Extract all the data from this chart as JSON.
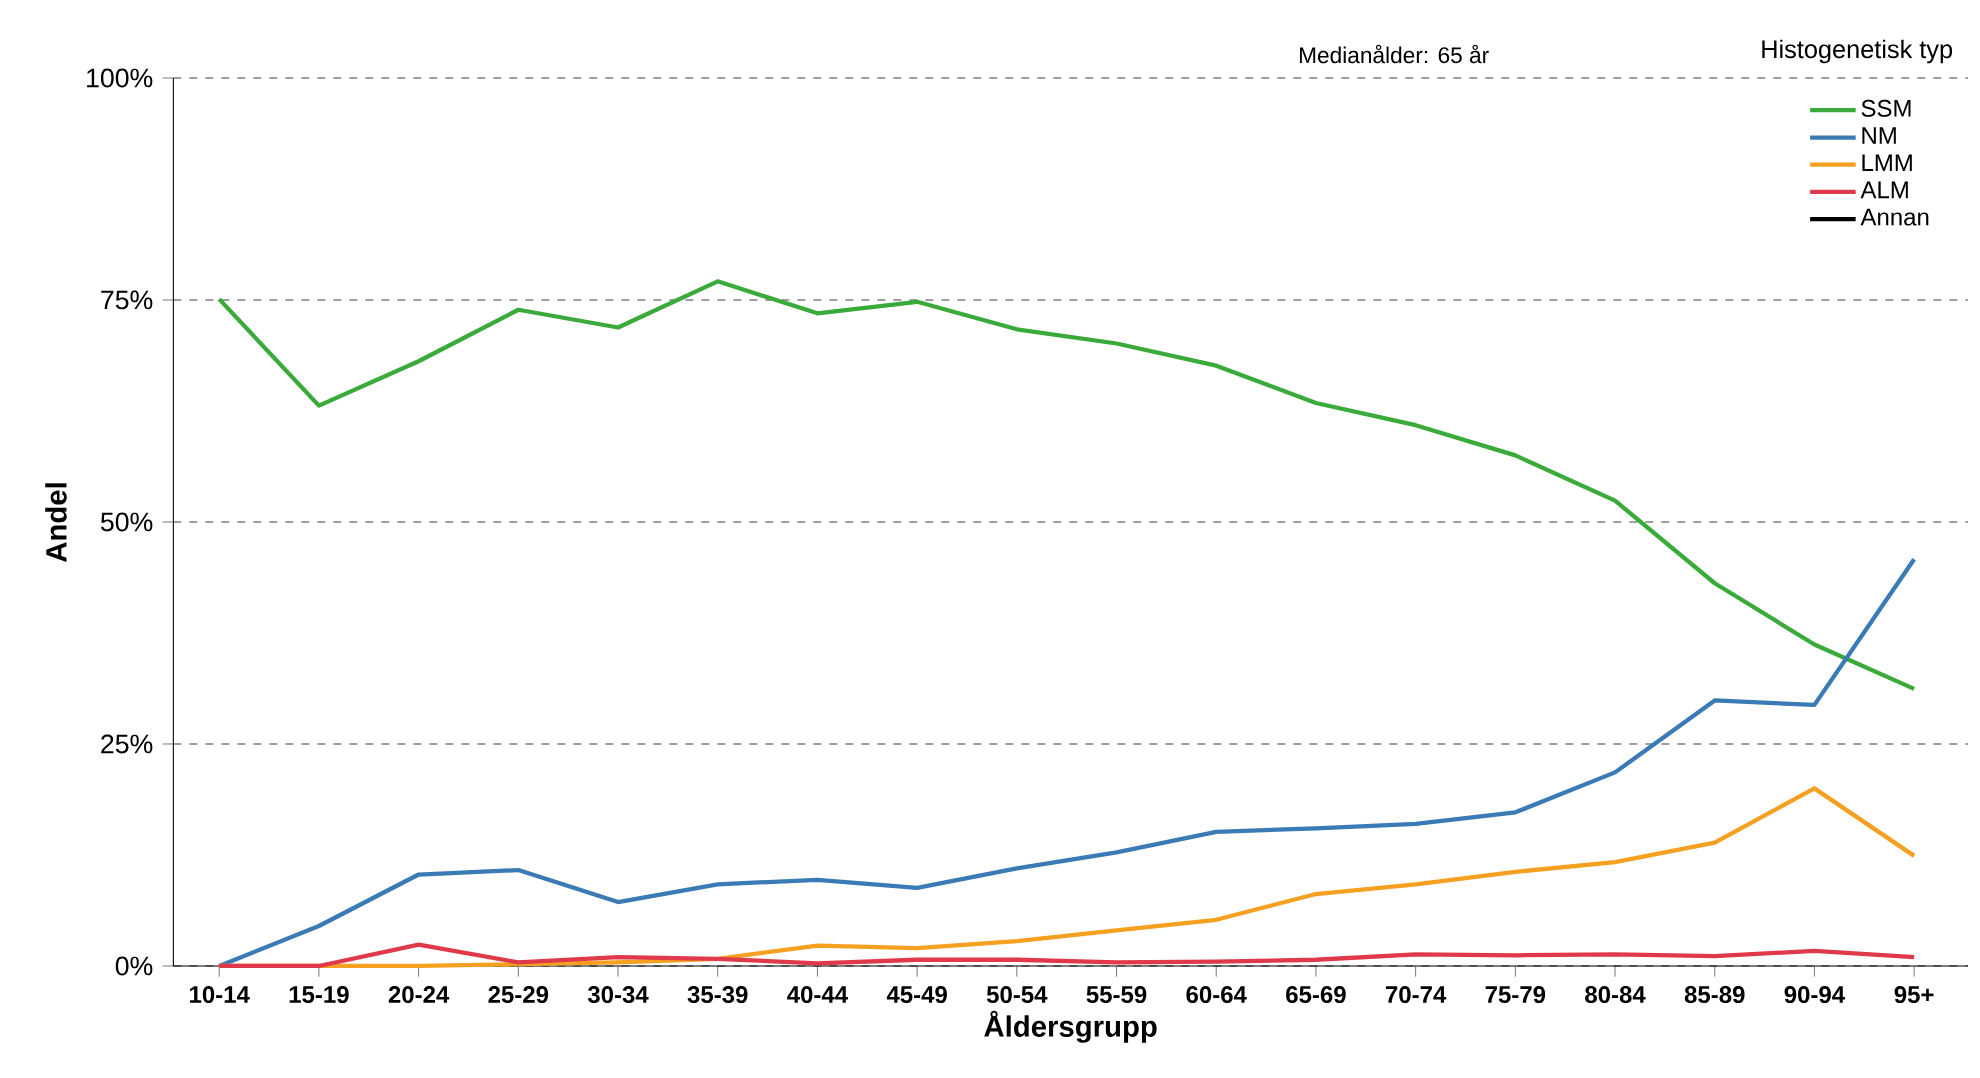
{
  "chart_data": {
    "type": "line",
    "ylabel": "Andel",
    "xlabel": "Åldersgrupp",
    "legend_title": "Histogenetisk typ",
    "annotations": [
      "Medianålder: 65 år"
    ],
    "categories": [
      "10-14",
      "15-19",
      "20-24",
      "25-29",
      "30-34",
      "35-39",
      "40-44",
      "45-49",
      "50-54",
      "55-59",
      "60-64",
      "65-69",
      "70-74",
      "75-79",
      "80-84",
      "85-89",
      "90-94",
      "95+"
    ],
    "ylim": [
      0,
      100
    ],
    "yticks": [
      {
        "value": 0,
        "label": "0%"
      },
      {
        "value": 25,
        "label": "25%"
      },
      {
        "value": 50,
        "label": "50%"
      },
      {
        "value": 75,
        "label": "75%"
      },
      {
        "value": 100,
        "label": "100%"
      }
    ],
    "grid": "y",
    "legend": "top right",
    "marker": "none",
    "line_style": "solid",
    "series": [
      {
        "name": "SSM",
        "color": "#3aaa3a",
        "values": [
          75.1,
          63.1,
          68.1,
          73.9,
          71.9,
          77.1,
          73.5,
          74.8,
          71.7,
          70.1,
          67.6,
          63.4,
          60.9,
          57.5,
          52.4,
          43.1,
          36.2,
          31.2
        ]
      },
      {
        "name": "NM",
        "color": "#3a7ab5",
        "values": [
          0,
          4.5,
          10.3,
          10.8,
          7.2,
          9.2,
          9.7,
          8.8,
          11,
          12.8,
          15.1,
          15.5,
          16,
          17.3,
          21.8,
          29.9,
          29.4,
          45.8
        ]
      },
      {
        "name": "LMM",
        "color": "#f5a020",
        "values": [
          0,
          0,
          0,
          0.2,
          0.4,
          0.8,
          2.3,
          2,
          2.8,
          4,
          5.2,
          8.1,
          9.2,
          10.6,
          11.7,
          13.9,
          20,
          12.4
        ]
      },
      {
        "name": "ALM",
        "color": "#e03a4a",
        "values": [
          0,
          0,
          2.4,
          0.4,
          1,
          0.8,
          0.3,
          0.7,
          0.7,
          0.4,
          0.5,
          0.7,
          1.3,
          1.2,
          1.3,
          1.1,
          1.7,
          1
        ]
      },
      {
        "name": "Annan",
        "color": "#000000",
        "values": [
          null,
          null,
          null,
          null,
          null,
          null,
          null,
          null,
          null,
          null,
          null,
          null,
          null,
          null,
          null,
          null,
          null,
          null
        ]
      }
    ]
  }
}
